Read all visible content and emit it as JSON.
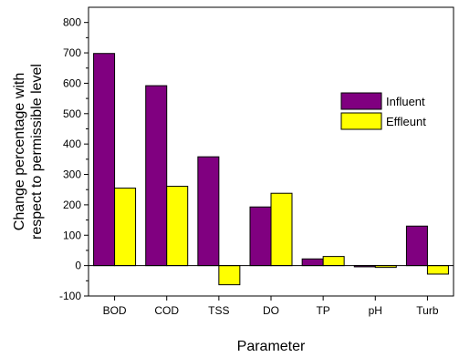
{
  "chart_data": {
    "type": "bar",
    "title": "",
    "xlabel": "Parameter",
    "ylabel_lines": [
      "Change percentage with",
      "respect to permissible level"
    ],
    "categories": [
      "BOD",
      "COD",
      "TSS",
      "DO",
      "TP",
      "pH",
      "Turb"
    ],
    "series": [
      {
        "name": "Influent",
        "color": "#800080",
        "values": [
          698,
          592,
          358,
          193,
          22,
          -4,
          130
        ]
      },
      {
        "name": "Effleunt",
        "color": "#ffff00",
        "values": [
          255,
          261,
          -63,
          238,
          30,
          -6,
          -28
        ]
      }
    ],
    "ylim": [
      -100,
      850
    ],
    "yticks": [
      -100,
      0,
      100,
      200,
      300,
      400,
      500,
      600,
      700,
      800
    ],
    "grid": false,
    "legend_position": "right"
  }
}
